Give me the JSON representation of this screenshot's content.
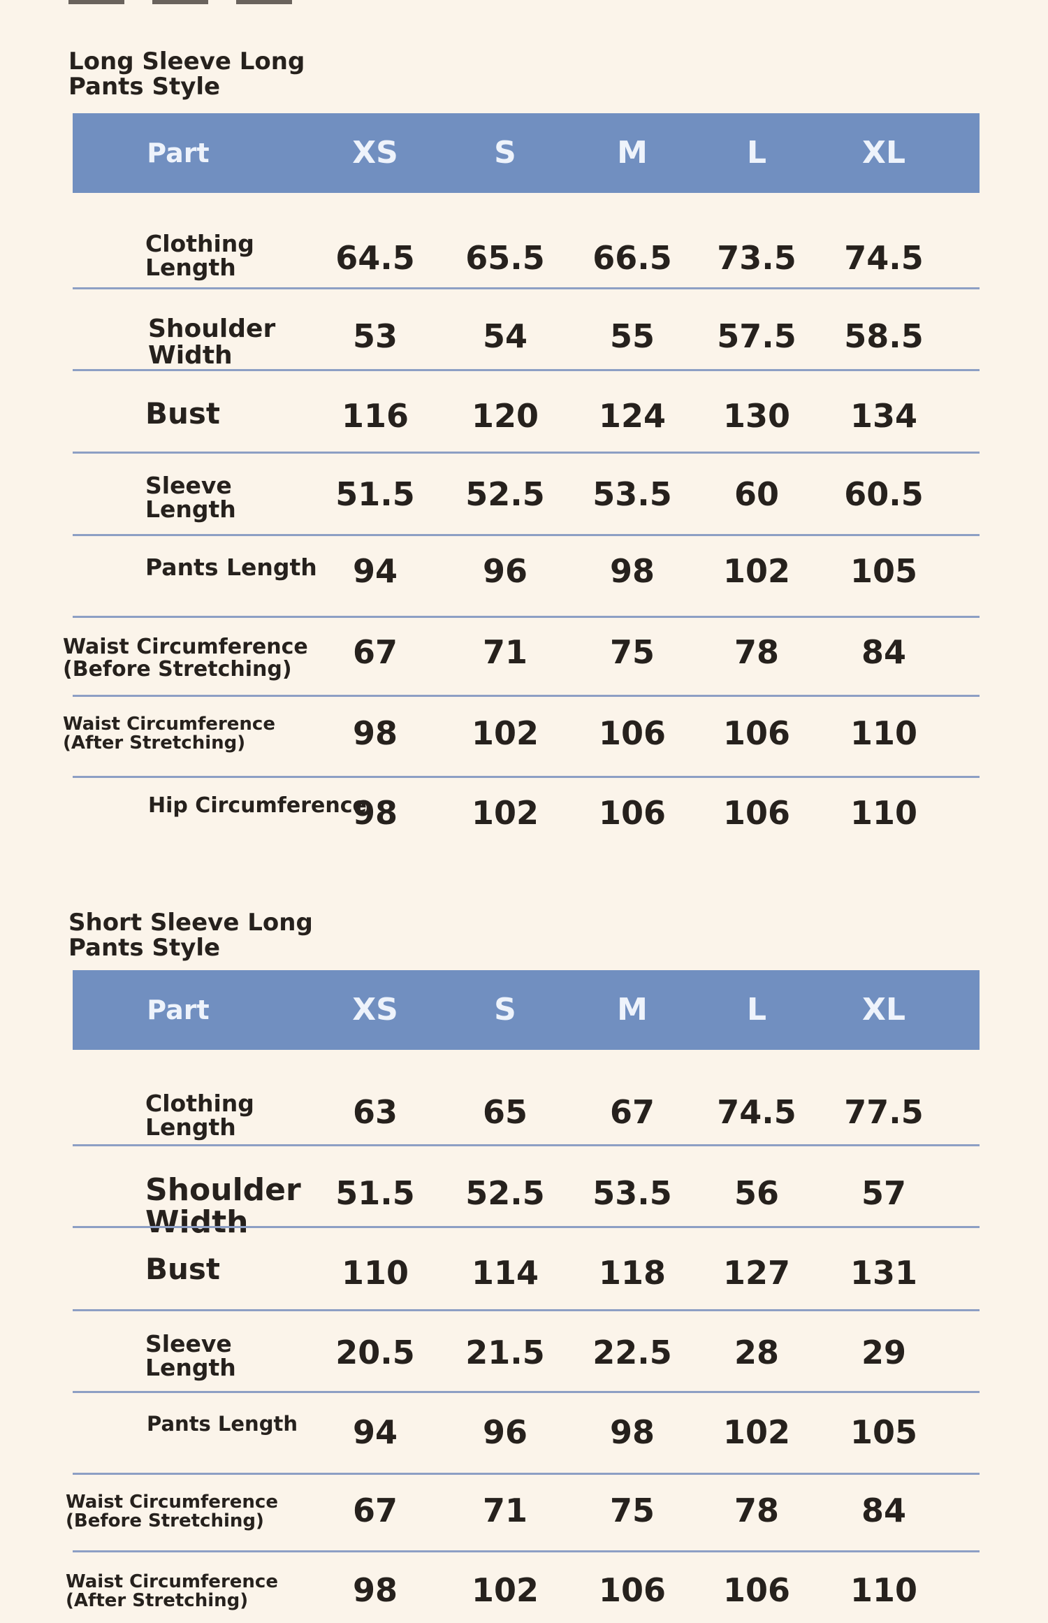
{
  "tables": [
    {
      "title": "Long Sleeve Long\n Pants Style",
      "header": [
        "Part",
        "XS",
        "S",
        "M",
        "L",
        "XL"
      ],
      "rows": [
        {
          "label": "Clothing\n Length",
          "values": [
            "64.5",
            "65.5",
            "66.5",
            "73.5",
            "74.5"
          ]
        },
        {
          "label": "Shoulder\n Width",
          "values": [
            "53",
            "54",
            "55",
            "57.5",
            "58.5"
          ]
        },
        {
          "label": "Bust",
          "values": [
            "116",
            "120",
            "124",
            "130",
            "134"
          ]
        },
        {
          "label": "Sleeve\n Length",
          "values": [
            "51.5",
            "52.5",
            "53.5",
            "60",
            "60.5"
          ]
        },
        {
          "label": "Pants Length",
          "values": [
            "94",
            "96",
            "98",
            "102",
            "105"
          ]
        },
        {
          "label": "Waist Circumference\n (Before Stretching)",
          "values": [
            "67",
            "71",
            "75",
            "78",
            "84"
          ]
        },
        {
          "label": "Waist Circumference\n (After Stretching)",
          "values": [
            "98",
            "102",
            "106",
            "106",
            "110"
          ]
        },
        {
          "label": "Hip Circumference",
          "values": [
            "98",
            "102",
            "106",
            "106",
            "110"
          ]
        }
      ]
    },
    {
      "title": "Short Sleeve Long\n Pants Style",
      "header": [
        "Part",
        "XS",
        "S",
        "M",
        "L",
        "XL"
      ],
      "rows": [
        {
          "label": "Clothing\n Length",
          "values": [
            "63",
            "65",
            "67",
            "74.5",
            "77.5"
          ]
        },
        {
          "label": "Shoulder\n Width",
          "values": [
            "51.5",
            "52.5",
            "53.5",
            "56",
            "57"
          ]
        },
        {
          "label": "Bust",
          "values": [
            "110",
            "114",
            "118",
            "127",
            "131"
          ]
        },
        {
          "label": "Sleeve\n Length",
          "values": [
            "20.5",
            "21.5",
            "22.5",
            "28",
            "29"
          ]
        },
        {
          "label": "Pants Length",
          "values": [
            "94",
            "96",
            "98",
            "102",
            "105"
          ]
        },
        {
          "label": "Waist Circumference\n (Before Stretching)",
          "values": [
            "67",
            "71",
            "75",
            "78",
            "84"
          ]
        },
        {
          "label": "Waist Circumference\n (After Stretching)",
          "values": [
            "98",
            "102",
            "106",
            "106",
            "110"
          ]
        }
      ]
    }
  ]
}
